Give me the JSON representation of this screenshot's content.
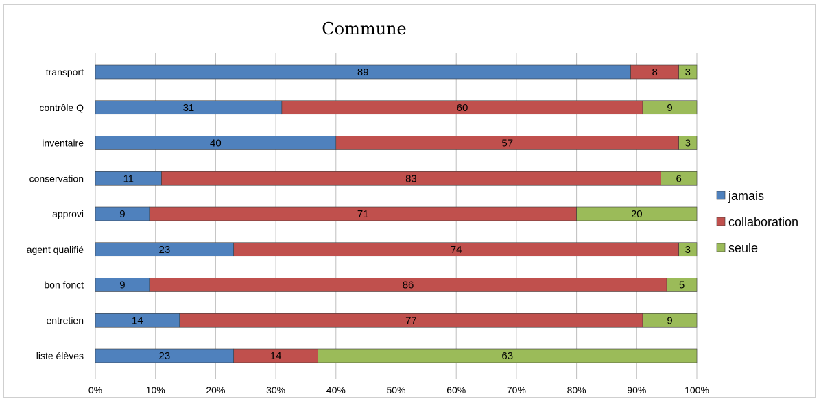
{
  "chart_data": {
    "type": "bar",
    "orientation": "horizontal",
    "stacked": "percent",
    "title": "Commune",
    "xlabel": "",
    "ylabel": "",
    "categories": [
      "transport",
      "contrôle Q",
      "inventaire",
      "conservation",
      "approvi",
      "agent qualifié",
      "bon fonct",
      "entretien",
      "liste élèves"
    ],
    "series": [
      {
        "name": "jamais",
        "color": "#4f81bd",
        "values": [
          89,
          31,
          40,
          11,
          9,
          23,
          9,
          14,
          23
        ]
      },
      {
        "name": "collaboration",
        "color": "#c0504d",
        "values": [
          8,
          60,
          57,
          83,
          71,
          74,
          86,
          77,
          14
        ]
      },
      {
        "name": "seule",
        "color": "#9bbb59",
        "values": [
          3,
          9,
          3,
          6,
          20,
          3,
          5,
          9,
          63
        ]
      }
    ],
    "xlim": [
      0,
      100
    ],
    "xticks": [
      "0%",
      "10%",
      "20%",
      "30%",
      "40%",
      "50%",
      "60%",
      "70%",
      "80%",
      "90%",
      "100%"
    ],
    "grid": true,
    "legend_position": "right"
  }
}
